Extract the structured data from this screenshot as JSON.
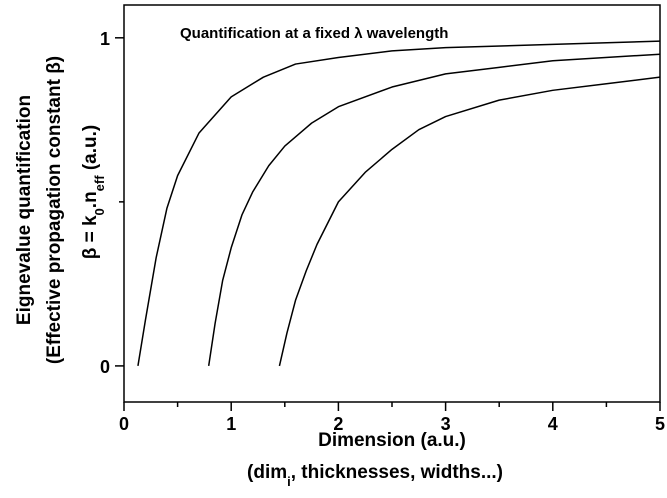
{
  "chart_data": {
    "type": "line",
    "annotation": "Quantification at a fixed λ wavelength",
    "xlabel": [
      "Dimension (a.u.)",
      [
        "(dim",
        "i",
        ", thicknesses, widths...)"
      ]
    ],
    "ylabel": [
      "Eignevalue quantification",
      "(Effective propagation constant β)",
      [
        "β = k",
        "0",
        ".n",
        "eff",
        " (a.u.)"
      ]
    ],
    "xlim": [
      0,
      5
    ],
    "xticks": [
      0,
      1,
      2,
      3,
      4,
      5
    ],
    "xminorticks": [
      0.5,
      1.5,
      2.5,
      3.5,
      4.5
    ],
    "ylim": [
      -0.11,
      1.1
    ],
    "yticks": [
      0,
      1
    ],
    "yminorticks": [
      0.5
    ],
    "series": [
      {
        "color": "#000000",
        "x": [
          0.13,
          0.2,
          0.3,
          0.4,
          0.5,
          0.7,
          1.0,
          1.3,
          1.6,
          2.0,
          2.5,
          3.0,
          4.0,
          5.0
        ],
        "values": [
          0,
          0.14,
          0.33,
          0.48,
          0.58,
          0.71,
          0.82,
          0.88,
          0.92,
          0.94,
          0.96,
          0.97,
          0.98,
          0.99
        ]
      },
      {
        "color": "#000000",
        "x": [
          0.79,
          0.85,
          0.92,
          1.0,
          1.1,
          1.2,
          1.35,
          1.5,
          1.75,
          2.0,
          2.5,
          3.0,
          3.5,
          4.0,
          5.0
        ],
        "values": [
          0,
          0.13,
          0.26,
          0.36,
          0.46,
          0.53,
          0.61,
          0.67,
          0.74,
          0.79,
          0.85,
          0.89,
          0.91,
          0.93,
          0.95
        ]
      },
      {
        "color": "#000000",
        "x": [
          1.45,
          1.52,
          1.6,
          1.7,
          1.8,
          2.0,
          2.25,
          2.5,
          2.75,
          3.0,
          3.5,
          4.0,
          4.5,
          5.0
        ],
        "values": [
          0,
          0.1,
          0.2,
          0.29,
          0.37,
          0.5,
          0.59,
          0.66,
          0.72,
          0.76,
          0.81,
          0.84,
          0.86,
          0.88
        ]
      }
    ]
  }
}
